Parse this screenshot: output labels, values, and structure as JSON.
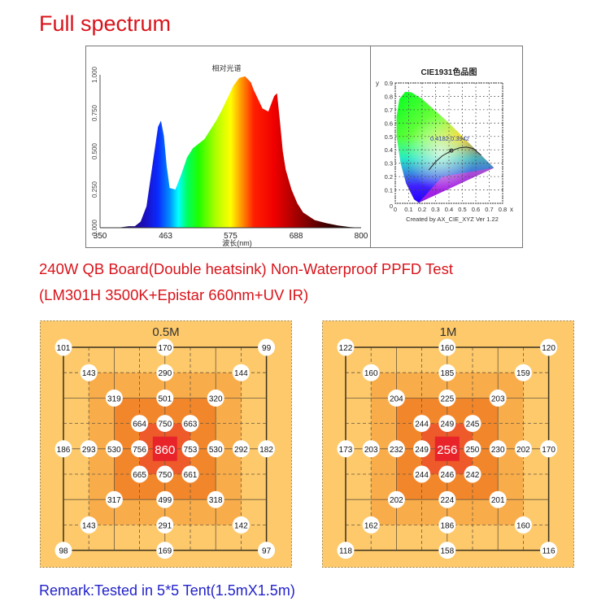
{
  "header": {
    "title": "Full spectrum",
    "subtitle_line1": "240W QB Board(Double heatsink) Non-Waterproof PPFD Test",
    "subtitle_line2": "(LM301H 3500K+Epistar 660nm+UV IR)",
    "remark": "Remark:Tested in 5*5 Tent(1.5mX1.5m)"
  },
  "chart_data": [
    {
      "type": "area",
      "title": "相对光谱",
      "xlabel": "波长(nm)",
      "ylabel": "",
      "xlim": [
        350,
        800
      ],
      "ylim": [
        0,
        1
      ],
      "xticks": [
        "350",
        "463",
        "575",
        "688",
        "800"
      ],
      "yticks": [
        "0.000",
        "0.250",
        "0.500",
        "0.750",
        "1.000"
      ],
      "x": [
        350,
        380,
        400,
        410,
        420,
        430,
        440,
        450,
        455,
        460,
        465,
        470,
        480,
        490,
        500,
        510,
        520,
        530,
        540,
        550,
        560,
        570,
        580,
        590,
        600,
        610,
        615,
        620,
        630,
        640,
        650,
        655,
        660,
        665,
        670,
        680,
        690,
        700,
        720,
        740,
        760,
        780,
        800
      ],
      "values": [
        0.0,
        0.0,
        0.01,
        0.01,
        0.04,
        0.14,
        0.4,
        0.66,
        0.7,
        0.6,
        0.4,
        0.26,
        0.25,
        0.35,
        0.46,
        0.52,
        0.55,
        0.58,
        0.64,
        0.7,
        0.77,
        0.85,
        0.93,
        0.98,
        0.99,
        0.95,
        0.9,
        0.86,
        0.78,
        0.76,
        0.86,
        0.88,
        0.7,
        0.5,
        0.38,
        0.25,
        0.16,
        0.1,
        0.05,
        0.03,
        0.015,
        0.005,
        0.0
      ]
    },
    {
      "type": "scatter",
      "title": "CIE1931色品图",
      "xlabel": "x",
      "ylabel": "y",
      "xlim": [
        0,
        0.8
      ],
      "ylim": [
        0,
        0.9
      ],
      "xticks": [
        "0",
        "0.1",
        "0.2",
        "0.3",
        "0.4",
        "0.5",
        "0.6",
        "0.7",
        "0.8"
      ],
      "yticks": [
        "0",
        "0.1",
        "0.2",
        "0.3",
        "0.4",
        "0.5",
        "0.6",
        "0.7",
        "0.8",
        "0.9"
      ],
      "point": {
        "x": 0.4182,
        "y": 0.3942,
        "label": "0.4182,0.3942"
      },
      "footer": "Created by AX_CIE_XYZ Ver 1.22"
    },
    {
      "type": "heatmap",
      "title": "0.5M",
      "unit": "PPFD",
      "rows": [
        [
          101,
          null,
          null,
          null,
          170,
          null,
          null,
          null,
          99
        ],
        [
          null,
          143,
          null,
          null,
          290,
          null,
          null,
          144,
          null
        ],
        [
          null,
          null,
          319,
          null,
          501,
          null,
          320,
          null,
          null
        ],
        [
          null,
          null,
          null,
          664,
          750,
          663,
          null,
          null,
          null
        ],
        [
          186,
          293,
          530,
          756,
          860,
          753,
          530,
          292,
          182
        ],
        [
          null,
          null,
          null,
          665,
          750,
          661,
          null,
          null,
          null
        ],
        [
          null,
          null,
          317,
          null,
          499,
          null,
          318,
          null,
          null
        ],
        [
          null,
          143,
          null,
          null,
          291,
          null,
          null,
          142,
          null
        ],
        [
          98,
          null,
          null,
          null,
          169,
          null,
          null,
          null,
          97
        ]
      ],
      "center": 860
    },
    {
      "type": "heatmap",
      "title": "1M",
      "unit": "PPFD",
      "rows": [
        [
          122,
          null,
          null,
          null,
          160,
          null,
          null,
          null,
          120
        ],
        [
          null,
          160,
          null,
          null,
          185,
          null,
          null,
          159,
          null
        ],
        [
          null,
          null,
          204,
          null,
          225,
          null,
          203,
          null,
          null
        ],
        [
          null,
          null,
          null,
          244,
          249,
          245,
          null,
          null,
          null
        ],
        [
          173,
          203,
          232,
          249,
          256,
          250,
          230,
          202,
          170
        ],
        [
          null,
          null,
          null,
          244,
          246,
          242,
          null,
          null,
          null
        ],
        [
          null,
          null,
          202,
          null,
          224,
          null,
          201,
          null,
          null
        ],
        [
          null,
          162,
          null,
          null,
          186,
          null,
          null,
          160,
          null
        ],
        [
          118,
          null,
          null,
          null,
          158,
          null,
          null,
          null,
          116
        ]
      ],
      "center": 256
    }
  ],
  "colors": {
    "title_red": "#d9141b",
    "remark_blue": "#2222cc",
    "grid_bg": "#fdc96a",
    "ring1": "#f9ad4a",
    "ring2": "#f2862a",
    "ring3": "#ee5a2a",
    "center": "#e8242a"
  }
}
